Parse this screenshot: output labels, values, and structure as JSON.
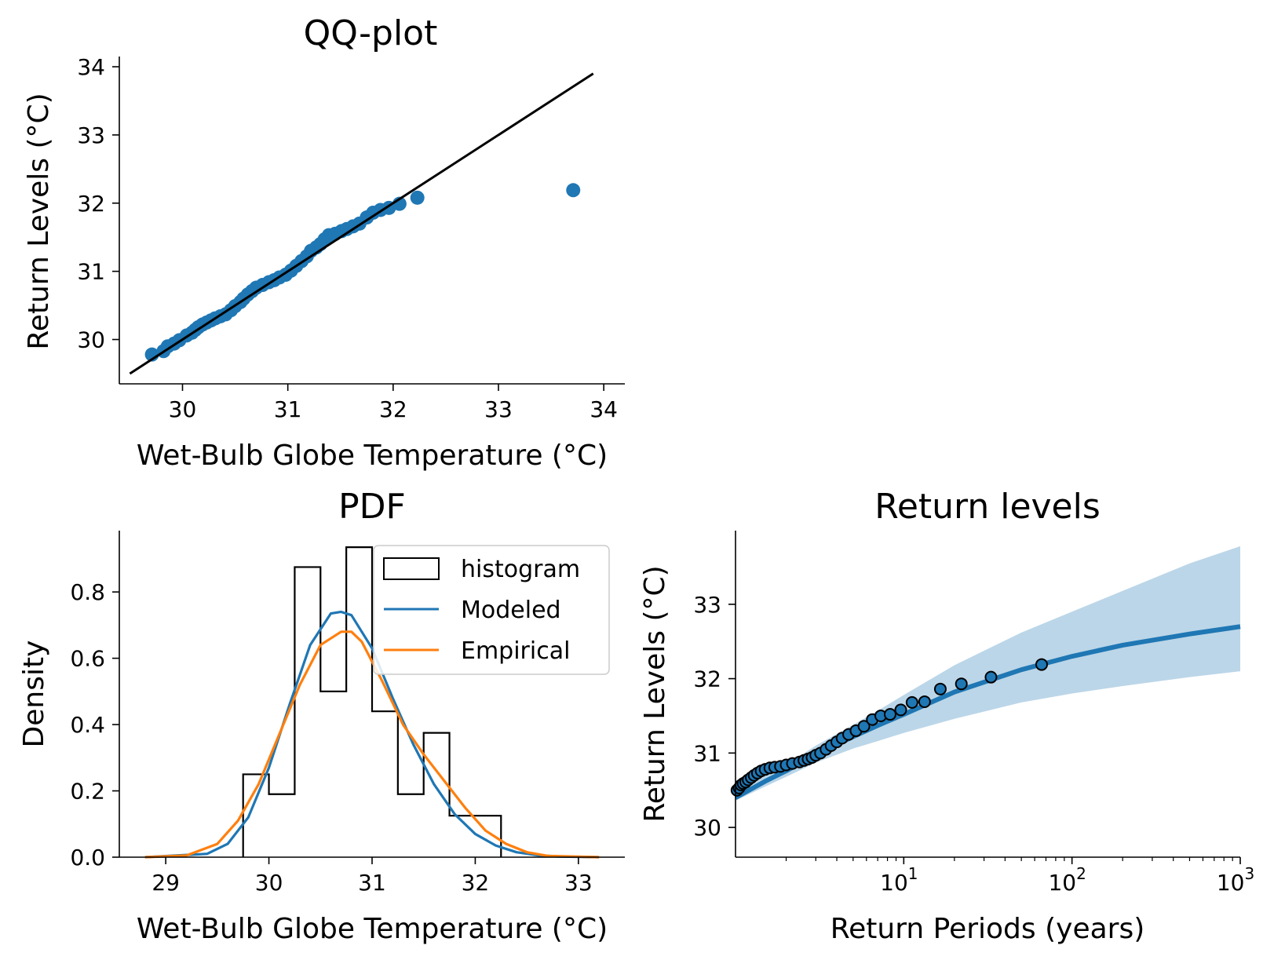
{
  "chart_data": [
    {
      "type": "scatter",
      "title": "QQ-plot",
      "xlabel": "Wet-Bulb Globe Temperature (°C)",
      "ylabel": "Return Levels (°C)",
      "xlim": [
        29.4,
        34.2
      ],
      "ylim": [
        29.35,
        34.15
      ],
      "xticks": [
        "30",
        "31",
        "32",
        "33",
        "34"
      ],
      "yticks": [
        "30",
        "31",
        "32",
        "33",
        "34"
      ],
      "reference_line": {
        "x": [
          29.5,
          33.9
        ],
        "y": [
          29.5,
          33.9
        ]
      },
      "color": "#1f77b4",
      "points": [
        [
          29.71,
          29.78
        ],
        [
          29.82,
          29.83
        ],
        [
          29.86,
          29.9
        ],
        [
          29.92,
          29.94
        ],
        [
          29.97,
          29.99
        ],
        [
          30.04,
          30.06
        ],
        [
          30.09,
          30.1
        ],
        [
          30.12,
          30.14
        ],
        [
          30.15,
          30.18
        ],
        [
          30.19,
          30.22
        ],
        [
          30.23,
          30.25
        ],
        [
          30.27,
          30.28
        ],
        [
          30.31,
          30.31
        ],
        [
          30.36,
          30.34
        ],
        [
          30.41,
          30.37
        ],
        [
          30.46,
          30.43
        ],
        [
          30.5,
          30.49
        ],
        [
          30.55,
          30.55
        ],
        [
          30.58,
          30.6
        ],
        [
          30.62,
          30.66
        ],
        [
          30.66,
          30.71
        ],
        [
          30.7,
          30.76
        ],
        [
          30.76,
          30.8
        ],
        [
          30.82,
          30.84
        ],
        [
          30.87,
          30.87
        ],
        [
          30.92,
          30.91
        ],
        [
          30.98,
          30.95
        ],
        [
          31.03,
          31.01
        ],
        [
          31.08,
          31.08
        ],
        [
          31.13,
          31.15
        ],
        [
          31.18,
          31.22
        ],
        [
          31.22,
          31.3
        ],
        [
          31.27,
          31.35
        ],
        [
          31.31,
          31.4
        ],
        [
          31.35,
          31.47
        ],
        [
          31.39,
          31.53
        ],
        [
          31.45,
          31.55
        ],
        [
          31.51,
          31.59
        ],
        [
          31.56,
          31.62
        ],
        [
          31.62,
          31.66
        ],
        [
          31.68,
          31.7
        ],
        [
          31.75,
          31.79
        ],
        [
          31.81,
          31.86
        ],
        [
          31.88,
          31.9
        ],
        [
          31.96,
          31.93
        ],
        [
          32.06,
          31.99
        ],
        [
          32.23,
          32.08
        ],
        [
          33.71,
          32.19
        ]
      ]
    },
    {
      "type": "histogram",
      "title": "PDF",
      "xlabel": "Wet-Bulb Globe Temperature (°C)",
      "ylabel": "Density",
      "xlim": [
        28.55,
        33.45
      ],
      "ylim": [
        0,
        0.985
      ],
      "xticks": [
        "29",
        "30",
        "31",
        "32",
        "33"
      ],
      "yticks": [
        "0.0",
        "0.2",
        "0.4",
        "0.6",
        "0.8"
      ],
      "legend": {
        "position": "upper right",
        "entries": [
          "histogram",
          "Modeled",
          "Empirical"
        ]
      },
      "histogram": {
        "bin_edges": [
          29.75,
          30.0,
          30.25,
          30.5,
          30.75,
          31.0,
          31.25,
          31.5,
          31.75,
          32.0,
          32.25
        ],
        "density": [
          0.25,
          0.19,
          0.875,
          0.5,
          0.935,
          0.44,
          0.19,
          0.375,
          0.125,
          0.125
        ]
      },
      "series": [
        {
          "name": "Modeled",
          "color": "#1f77b4",
          "x": [
            28.8,
            29.4,
            29.6,
            29.8,
            30.0,
            30.2,
            30.4,
            30.6,
            30.7,
            30.8,
            31.0,
            31.2,
            31.4,
            31.6,
            31.8,
            32.0,
            32.2,
            32.4,
            32.6,
            32.8,
            33.2
          ],
          "y": [
            0.0,
            0.01,
            0.04,
            0.12,
            0.27,
            0.46,
            0.64,
            0.735,
            0.74,
            0.73,
            0.63,
            0.48,
            0.34,
            0.22,
            0.13,
            0.07,
            0.035,
            0.015,
            0.006,
            0.002,
            0.0
          ]
        },
        {
          "name": "Empirical",
          "color": "#ff7f0e",
          "x": [
            28.8,
            29.2,
            29.5,
            29.7,
            29.9,
            30.1,
            30.3,
            30.5,
            30.7,
            30.8,
            30.9,
            31.1,
            31.3,
            31.5,
            31.7,
            31.9,
            32.1,
            32.3,
            32.5,
            32.7,
            33.2
          ],
          "y": [
            0.0,
            0.005,
            0.04,
            0.11,
            0.22,
            0.37,
            0.52,
            0.64,
            0.68,
            0.68,
            0.65,
            0.53,
            0.4,
            0.31,
            0.23,
            0.15,
            0.08,
            0.04,
            0.015,
            0.004,
            0.0
          ]
        }
      ]
    },
    {
      "type": "line",
      "title": "Return levels",
      "xlabel": "Return Periods (years)",
      "ylabel": "Return Levels (°C)",
      "xscale": "log",
      "xlim": [
        1.0,
        1000
      ],
      "ylim": [
        29.6,
        33.99
      ],
      "xticks": [
        {
          "base": "10",
          "exp": "1"
        },
        {
          "base": "10",
          "exp": "2"
        },
        {
          "base": "10",
          "exp": "3"
        }
      ],
      "yticks": [
        "30",
        "31",
        "32",
        "33"
      ],
      "model": {
        "color": "#1f77b4",
        "x": [
          1.0,
          1.5,
          2,
          3,
          5,
          7,
          10,
          20,
          50,
          100,
          200,
          500,
          1000
        ],
        "y": [
          30.4,
          30.62,
          30.76,
          30.98,
          31.22,
          31.37,
          31.52,
          31.82,
          32.12,
          32.3,
          32.45,
          32.6,
          32.7
        ]
      },
      "confidence_band": {
        "color": "#1f77b4",
        "x": [
          1.0,
          1.5,
          2,
          3,
          5,
          7,
          10,
          20,
          50,
          100,
          200,
          500,
          1000
        ],
        "lower": [
          30.36,
          30.55,
          30.68,
          30.87,
          31.06,
          31.16,
          31.27,
          31.46,
          31.68,
          31.8,
          31.9,
          32.02,
          32.1
        ],
        "upper": [
          30.45,
          30.7,
          30.84,
          31.1,
          31.38,
          31.57,
          31.78,
          32.18,
          32.62,
          32.9,
          33.18,
          33.55,
          33.78
        ]
      },
      "empirical_points": {
        "x": [
          1.02,
          1.05,
          1.08,
          1.11,
          1.15,
          1.19,
          1.24,
          1.29,
          1.35,
          1.42,
          1.5,
          1.6,
          1.71,
          1.85,
          2.0,
          2.18,
          2.4,
          2.55,
          2.7,
          2.85,
          3.0,
          3.2,
          3.45,
          3.7,
          4.0,
          4.3,
          4.7,
          5.2,
          5.8,
          6.5,
          7.3,
          8.3,
          9.6,
          11.2,
          13.3,
          16.5,
          22,
          33,
          66
        ],
        "y": [
          30.5,
          30.53,
          30.57,
          30.59,
          30.61,
          30.64,
          30.67,
          30.7,
          30.73,
          30.76,
          30.78,
          30.8,
          30.81,
          30.82,
          30.84,
          30.86,
          30.88,
          30.9,
          30.92,
          30.94,
          30.97,
          31.0,
          31.05,
          31.1,
          31.15,
          31.2,
          31.25,
          31.3,
          31.36,
          31.45,
          31.5,
          31.52,
          31.58,
          31.68,
          31.69,
          31.86,
          31.93,
          32.02,
          32.19
        ]
      }
    }
  ]
}
